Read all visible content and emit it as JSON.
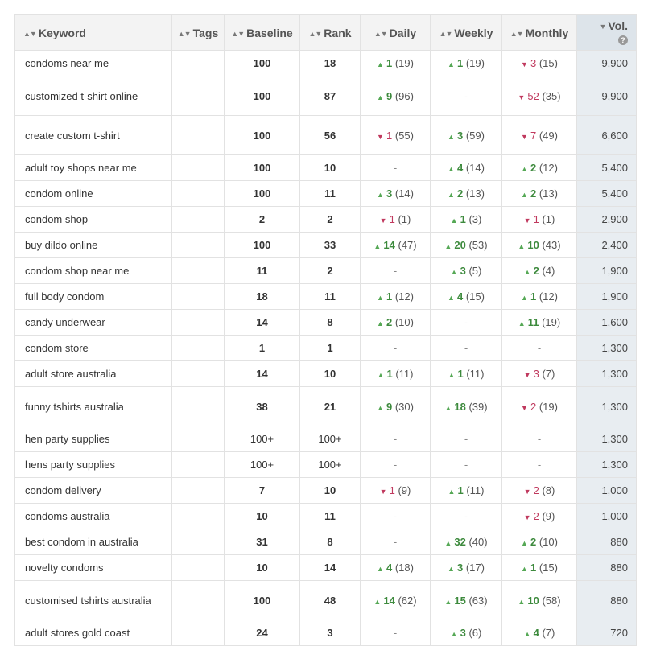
{
  "columns": {
    "keyword": "Keyword",
    "tags": "Tags",
    "baseline": "Baseline",
    "rank": "Rank",
    "daily": "Daily",
    "weekly": "Weekly",
    "monthly": "Monthly",
    "volume": "Vol."
  },
  "icons": {
    "sort": "sort-updown-icon",
    "sort_active": "sort-desc-icon",
    "help": "help-circle-icon",
    "up": "triangle-up-icon",
    "down": "triangle-down-icon"
  },
  "colors": {
    "up": "#55a855",
    "down": "#c0395e",
    "volume_col": "#e8edf1",
    "header": "#f3f3f3"
  },
  "rows": [
    {
      "keyword": "condoms near me",
      "tags": "",
      "baseline": "100",
      "rank": "18",
      "daily": {
        "dir": "up",
        "delta": "1",
        "val": "(19)"
      },
      "weekly": {
        "dir": "up",
        "delta": "1",
        "val": "(19)"
      },
      "monthly": {
        "dir": "down",
        "delta": "3",
        "val": "(15)"
      },
      "volume": "9,900",
      "tall": false
    },
    {
      "keyword": "customized t-shirt online",
      "tags": "",
      "baseline": "100",
      "rank": "87",
      "daily": {
        "dir": "up",
        "delta": "9",
        "val": "(96)"
      },
      "weekly": {
        "dir": "none"
      },
      "monthly": {
        "dir": "down",
        "delta": "52",
        "val": "(35)"
      },
      "volume": "9,900",
      "tall": true
    },
    {
      "keyword": "create custom t-shirt",
      "tags": "",
      "baseline": "100",
      "rank": "56",
      "daily": {
        "dir": "down",
        "delta": "1",
        "val": "(55)"
      },
      "weekly": {
        "dir": "up",
        "delta": "3",
        "val": "(59)"
      },
      "monthly": {
        "dir": "down",
        "delta": "7",
        "val": "(49)"
      },
      "volume": "6,600",
      "tall": true
    },
    {
      "keyword": "adult toy shops near me",
      "tags": "",
      "baseline": "100",
      "rank": "10",
      "daily": {
        "dir": "none"
      },
      "weekly": {
        "dir": "up",
        "delta": "4",
        "val": "(14)"
      },
      "monthly": {
        "dir": "up",
        "delta": "2",
        "val": "(12)"
      },
      "volume": "5,400",
      "tall": false
    },
    {
      "keyword": "condom online",
      "tags": "",
      "baseline": "100",
      "rank": "11",
      "daily": {
        "dir": "up",
        "delta": "3",
        "val": "(14)"
      },
      "weekly": {
        "dir": "up",
        "delta": "2",
        "val": "(13)"
      },
      "monthly": {
        "dir": "up",
        "delta": "2",
        "val": "(13)"
      },
      "volume": "5,400",
      "tall": false
    },
    {
      "keyword": "condom shop",
      "tags": "",
      "baseline": "2",
      "rank": "2",
      "daily": {
        "dir": "down",
        "delta": "1",
        "val": "(1)"
      },
      "weekly": {
        "dir": "up",
        "delta": "1",
        "val": "(3)"
      },
      "monthly": {
        "dir": "down",
        "delta": "1",
        "val": "(1)"
      },
      "volume": "2,900",
      "tall": false
    },
    {
      "keyword": "buy dildo online",
      "tags": "",
      "baseline": "100",
      "rank": "33",
      "daily": {
        "dir": "up",
        "delta": "14",
        "val": "(47)"
      },
      "weekly": {
        "dir": "up",
        "delta": "20",
        "val": "(53)"
      },
      "monthly": {
        "dir": "up",
        "delta": "10",
        "val": "(43)"
      },
      "volume": "2,400",
      "tall": false
    },
    {
      "keyword": "condom shop near me",
      "tags": "",
      "baseline": "11",
      "rank": "2",
      "daily": {
        "dir": "none"
      },
      "weekly": {
        "dir": "up",
        "delta": "3",
        "val": "(5)"
      },
      "monthly": {
        "dir": "up",
        "delta": "2",
        "val": "(4)"
      },
      "volume": "1,900",
      "tall": false
    },
    {
      "keyword": "full body condom",
      "tags": "",
      "baseline": "18",
      "rank": "11",
      "daily": {
        "dir": "up",
        "delta": "1",
        "val": "(12)"
      },
      "weekly": {
        "dir": "up",
        "delta": "4",
        "val": "(15)"
      },
      "monthly": {
        "dir": "up",
        "delta": "1",
        "val": "(12)"
      },
      "volume": "1,900",
      "tall": false
    },
    {
      "keyword": "candy underwear",
      "tags": "",
      "baseline": "14",
      "rank": "8",
      "daily": {
        "dir": "up",
        "delta": "2",
        "val": "(10)"
      },
      "weekly": {
        "dir": "none"
      },
      "monthly": {
        "dir": "up",
        "delta": "11",
        "val": "(19)"
      },
      "volume": "1,600",
      "tall": false
    },
    {
      "keyword": "condom store",
      "tags": "",
      "baseline": "1",
      "rank": "1",
      "daily": {
        "dir": "none"
      },
      "weekly": {
        "dir": "none"
      },
      "monthly": {
        "dir": "none"
      },
      "volume": "1,300",
      "tall": false
    },
    {
      "keyword": "adult store australia",
      "tags": "",
      "baseline": "14",
      "rank": "10",
      "daily": {
        "dir": "up",
        "delta": "1",
        "val": "(11)"
      },
      "weekly": {
        "dir": "up",
        "delta": "1",
        "val": "(11)"
      },
      "monthly": {
        "dir": "down",
        "delta": "3",
        "val": "(7)"
      },
      "volume": "1,300",
      "tall": false
    },
    {
      "keyword": "funny tshirts australia",
      "tags": "",
      "baseline": "38",
      "rank": "21",
      "daily": {
        "dir": "up",
        "delta": "9",
        "val": "(30)"
      },
      "weekly": {
        "dir": "up",
        "delta": "18",
        "val": "(39)"
      },
      "monthly": {
        "dir": "down",
        "delta": "2",
        "val": "(19)"
      },
      "volume": "1,300",
      "tall": true
    },
    {
      "keyword": "hen party supplies",
      "tags": "",
      "baseline": "100+",
      "rank": "100+",
      "daily": {
        "dir": "none"
      },
      "weekly": {
        "dir": "none"
      },
      "monthly": {
        "dir": "none"
      },
      "volume": "1,300",
      "tall": false,
      "plain": true
    },
    {
      "keyword": "hens party supplies",
      "tags": "",
      "baseline": "100+",
      "rank": "100+",
      "daily": {
        "dir": "none"
      },
      "weekly": {
        "dir": "none"
      },
      "monthly": {
        "dir": "none"
      },
      "volume": "1,300",
      "tall": false,
      "plain": true
    },
    {
      "keyword": "condom delivery",
      "tags": "",
      "baseline": "7",
      "rank": "10",
      "daily": {
        "dir": "down",
        "delta": "1",
        "val": "(9)"
      },
      "weekly": {
        "dir": "up",
        "delta": "1",
        "val": "(11)"
      },
      "monthly": {
        "dir": "down",
        "delta": "2",
        "val": "(8)"
      },
      "volume": "1,000",
      "tall": false
    },
    {
      "keyword": "condoms australia",
      "tags": "",
      "baseline": "10",
      "rank": "11",
      "daily": {
        "dir": "none"
      },
      "weekly": {
        "dir": "none"
      },
      "monthly": {
        "dir": "down",
        "delta": "2",
        "val": "(9)"
      },
      "volume": "1,000",
      "tall": false
    },
    {
      "keyword": "best condom in australia",
      "tags": "",
      "baseline": "31",
      "rank": "8",
      "daily": {
        "dir": "none"
      },
      "weekly": {
        "dir": "up",
        "delta": "32",
        "val": "(40)"
      },
      "monthly": {
        "dir": "up",
        "delta": "2",
        "val": "(10)"
      },
      "volume": "880",
      "tall": false
    },
    {
      "keyword": "novelty condoms",
      "tags": "",
      "baseline": "10",
      "rank": "14",
      "daily": {
        "dir": "up",
        "delta": "4",
        "val": "(18)"
      },
      "weekly": {
        "dir": "up",
        "delta": "3",
        "val": "(17)"
      },
      "monthly": {
        "dir": "up",
        "delta": "1",
        "val": "(15)"
      },
      "volume": "880",
      "tall": false
    },
    {
      "keyword": "customised tshirts australia",
      "tags": "",
      "baseline": "100",
      "rank": "48",
      "daily": {
        "dir": "up",
        "delta": "14",
        "val": "(62)"
      },
      "weekly": {
        "dir": "up",
        "delta": "15",
        "val": "(63)"
      },
      "monthly": {
        "dir": "up",
        "delta": "10",
        "val": "(58)"
      },
      "volume": "880",
      "tall": true
    },
    {
      "keyword": "adult stores gold coast",
      "tags": "",
      "baseline": "24",
      "rank": "3",
      "daily": {
        "dir": "none"
      },
      "weekly": {
        "dir": "up",
        "delta": "3",
        "val": "(6)"
      },
      "monthly": {
        "dir": "up",
        "delta": "4",
        "val": "(7)"
      },
      "volume": "720",
      "tall": false
    }
  ]
}
